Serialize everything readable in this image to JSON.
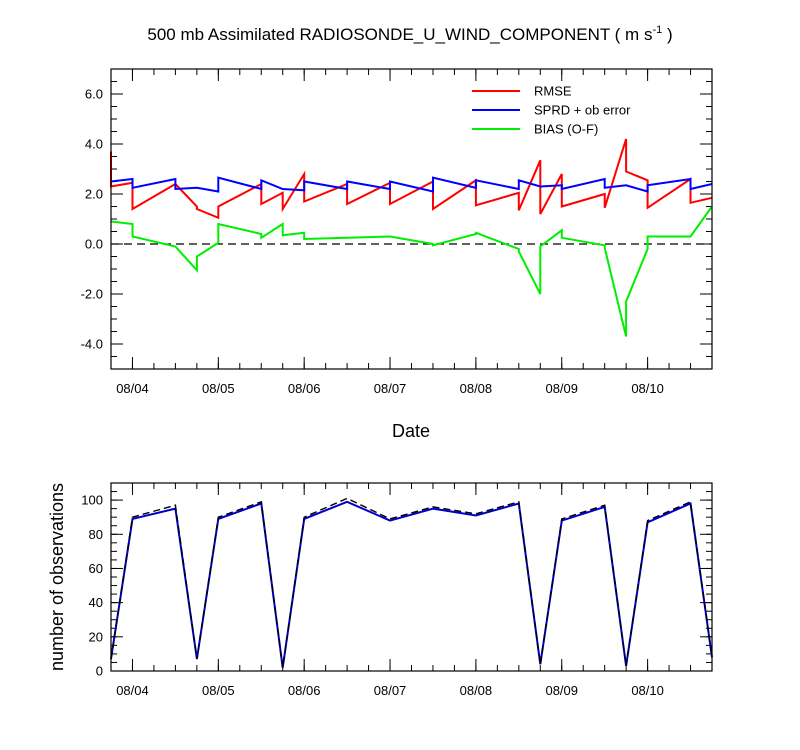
{
  "chart_data": [
    {
      "type": "line",
      "title": "500 mb Assimilated RADIOSONDE_U_WIND_COMPONENT ( m s",
      "title_superscript": "-1",
      "title_suffix": " )",
      "xlabel": "Date",
      "ylabel": "",
      "xlim": [
        0,
        7.0
      ],
      "ylim": [
        -5,
        7.0
      ],
      "x_ticks": [
        0.25,
        1.25,
        2.25,
        3.25,
        4.25,
        5.25,
        6.25
      ],
      "x_tick_labels": [
        "08/04",
        "08/05",
        "08/06",
        "08/07",
        "08/08",
        "08/09",
        "08/10"
      ],
      "y_ticks": [
        -4,
        -2,
        0,
        2,
        4,
        6
      ],
      "y_tick_labels": [
        "-4.0",
        "-2.0",
        "0.0",
        "2.0",
        "4.0",
        "6.0"
      ],
      "reference_line": 0,
      "legend_position": "top-right",
      "series": [
        {
          "name": "RMSE",
          "color": "#ff0000",
          "x": [
            0,
            0,
            0.25,
            0.25,
            0.75,
            1.0,
            1.0,
            1.25,
            1.25,
            1.75,
            1.75,
            2.0,
            2.0,
            2.25,
            2.25,
            2.75,
            2.75,
            3.25,
            3.25,
            3.75,
            3.75,
            4.25,
            4.25,
            4.75,
            4.75,
            5.0,
            5.0,
            5.25,
            5.25,
            5.75,
            5.75,
            6.0,
            6.0,
            6.25,
            6.25,
            6.75,
            6.75,
            7.0
          ],
          "y": [
            3.7,
            2.3,
            2.45,
            1.4,
            2.4,
            1.5,
            1.4,
            1.05,
            1.5,
            2.4,
            1.6,
            2.05,
            1.4,
            2.8,
            1.7,
            2.4,
            1.6,
            2.45,
            1.6,
            2.5,
            1.4,
            2.55,
            1.55,
            2.05,
            1.35,
            3.35,
            1.2,
            2.8,
            1.5,
            2.0,
            1.45,
            4.2,
            2.9,
            2.55,
            1.45,
            2.6,
            1.65,
            1.85
          ]
        },
        {
          "name": "SPRD + ob error",
          "color": "#0000ff",
          "x": [
            0,
            0.25,
            0.25,
            0.75,
            0.75,
            1.0,
            1.25,
            1.25,
            1.75,
            1.75,
            2.0,
            2.25,
            2.25,
            2.75,
            2.75,
            3.25,
            3.25,
            3.75,
            3.75,
            4.25,
            4.25,
            4.75,
            4.75,
            5.0,
            5.25,
            5.25,
            5.75,
            5.75,
            6.0,
            6.25,
            6.25,
            6.75,
            6.75,
            7.0
          ],
          "y": [
            2.5,
            2.6,
            2.25,
            2.6,
            2.2,
            2.25,
            2.1,
            2.65,
            2.2,
            2.55,
            2.2,
            2.15,
            2.5,
            2.2,
            2.5,
            2.2,
            2.5,
            2.1,
            2.65,
            2.25,
            2.55,
            2.2,
            2.55,
            2.3,
            2.35,
            2.2,
            2.6,
            2.25,
            2.35,
            2.1,
            2.35,
            2.6,
            2.2,
            2.4
          ]
        },
        {
          "name": "BIAS (O-F)",
          "color": "#00ee00",
          "x": [
            0,
            0.25,
            0.25,
            0.75,
            1.0,
            1.0,
            1.25,
            1.25,
            1.75,
            1.75,
            2.0,
            2.0,
            2.25,
            2.25,
            2.75,
            3.25,
            3.25,
            3.75,
            3.75,
            4.25,
            4.25,
            4.75,
            4.75,
            5.0,
            5.0,
            5.25,
            5.25,
            5.75,
            5.75,
            6.0,
            6.0,
            6.25,
            6.25,
            6.75,
            7.0
          ],
          "y": [
            0.9,
            0.8,
            0.3,
            -0.1,
            -1.05,
            -0.5,
            0.05,
            0.8,
            0.4,
            0.25,
            0.8,
            0.35,
            0.45,
            0.2,
            0.25,
            0.3,
            0.3,
            0.0,
            -0.05,
            0.4,
            0.45,
            -0.2,
            -0.3,
            -2.0,
            -0.1,
            0.55,
            0.25,
            -0.05,
            -0.15,
            -3.7,
            -2.3,
            -0.2,
            0.3,
            0.3,
            1.5
          ]
        }
      ]
    },
    {
      "type": "line",
      "title": "",
      "xlabel": "",
      "ylabel": "number of observations",
      "xlim": [
        0,
        7.0
      ],
      "ylim": [
        0,
        110
      ],
      "x_ticks": [
        0.25,
        1.25,
        2.25,
        3.25,
        4.25,
        5.25,
        6.25
      ],
      "x_tick_labels": [
        "08/04",
        "08/05",
        "08/06",
        "08/07",
        "08/08",
        "08/09",
        "08/10"
      ],
      "y_ticks": [
        0,
        20,
        40,
        60,
        80,
        100
      ],
      "y_tick_labels": [
        "0",
        "20",
        "40",
        "60",
        "80",
        "100"
      ],
      "series": [
        {
          "name": "",
          "color": "#0000cc",
          "x": [
            0,
            0.25,
            0.75,
            1.0,
            1.25,
            1.75,
            2.0,
            2.25,
            2.75,
            3.25,
            3.75,
            4.25,
            4.75,
            5.0,
            5.25,
            5.75,
            6.0,
            6.25,
            6.75,
            7.0
          ],
          "y": [
            7,
            89,
            95,
            7,
            89,
            98,
            2,
            89,
            99,
            88,
            95,
            91,
            98,
            4,
            88,
            96,
            3,
            87,
            98,
            8
          ]
        },
        {
          "name": "",
          "color": "#000000",
          "dashed": true,
          "x": [
            0,
            0.25,
            0.75,
            1.0,
            1.25,
            1.75,
            2.0,
            2.25,
            2.75,
            3.25,
            3.75,
            4.25,
            4.75,
            5.0,
            5.25,
            5.75,
            6.0,
            6.25,
            6.75,
            7.0
          ],
          "y": [
            7,
            90,
            97,
            7,
            90,
            99,
            2,
            90,
            101,
            89,
            96,
            92,
            99,
            4,
            89,
            97,
            3,
            88,
            99,
            8
          ]
        }
      ]
    }
  ]
}
